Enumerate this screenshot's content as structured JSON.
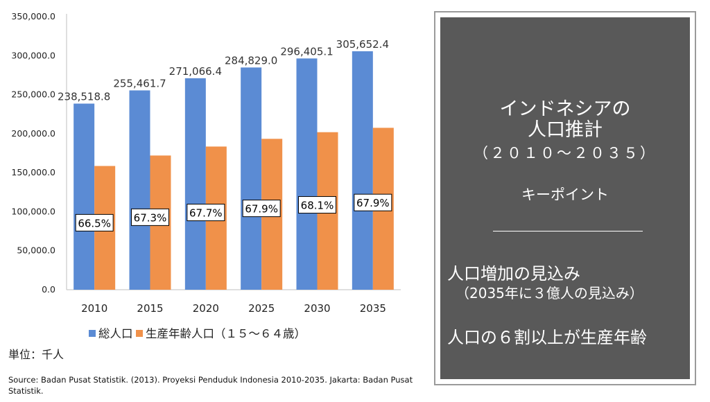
{
  "chart_data": {
    "type": "bar",
    "categories": [
      "2010",
      "2015",
      "2020",
      "2025",
      "2030",
      "2035"
    ],
    "series": [
      {
        "name": "総人口",
        "color": "#5b8bd4",
        "values": [
          238518.8,
          255461.7,
          271066.4,
          284829.0,
          296405.1,
          305652.4
        ],
        "labels": [
          "238,518.8",
          "255,461.7",
          "271,066.4",
          "284,829.0",
          "296,405.1",
          "305,652.4"
        ]
      },
      {
        "name": "生産年齢人口（１５〜６４歳）",
        "color": "#f0914a",
        "values": [
          158600,
          172000,
          183500,
          193400,
          201900,
          207500
        ],
        "labels": [
          "66.5%",
          "67.3%",
          "67.7%",
          "67.9%",
          "68.1%",
          "67.9%"
        ]
      }
    ],
    "ylim": [
      0,
      350000
    ],
    "yticks": [
      "0.0",
      "50,000.0",
      "100,000.0",
      "150,000.0",
      "200,000.0",
      "250,000.0",
      "300,000.0",
      "350,000.0"
    ],
    "grid": false,
    "legend": "bottom"
  },
  "unit_label": "単位：千人",
  "source": "Source: Badan Pusat Statistik. (2013). Proyeksi Penduduk Indonesia 2010-2035. Jakarta: Badan Pusat Statistik.",
  "panel": {
    "title_line1": "インドネシアの",
    "title_line2": "人口推計",
    "range": "（２０１０〜２０３５）",
    "keypoint": "キーポイント",
    "point1": "人口増加の見込み",
    "point1_sub": "（2035年に３億人の見込み）",
    "point2": "人口の６割以上が生産年齢"
  }
}
